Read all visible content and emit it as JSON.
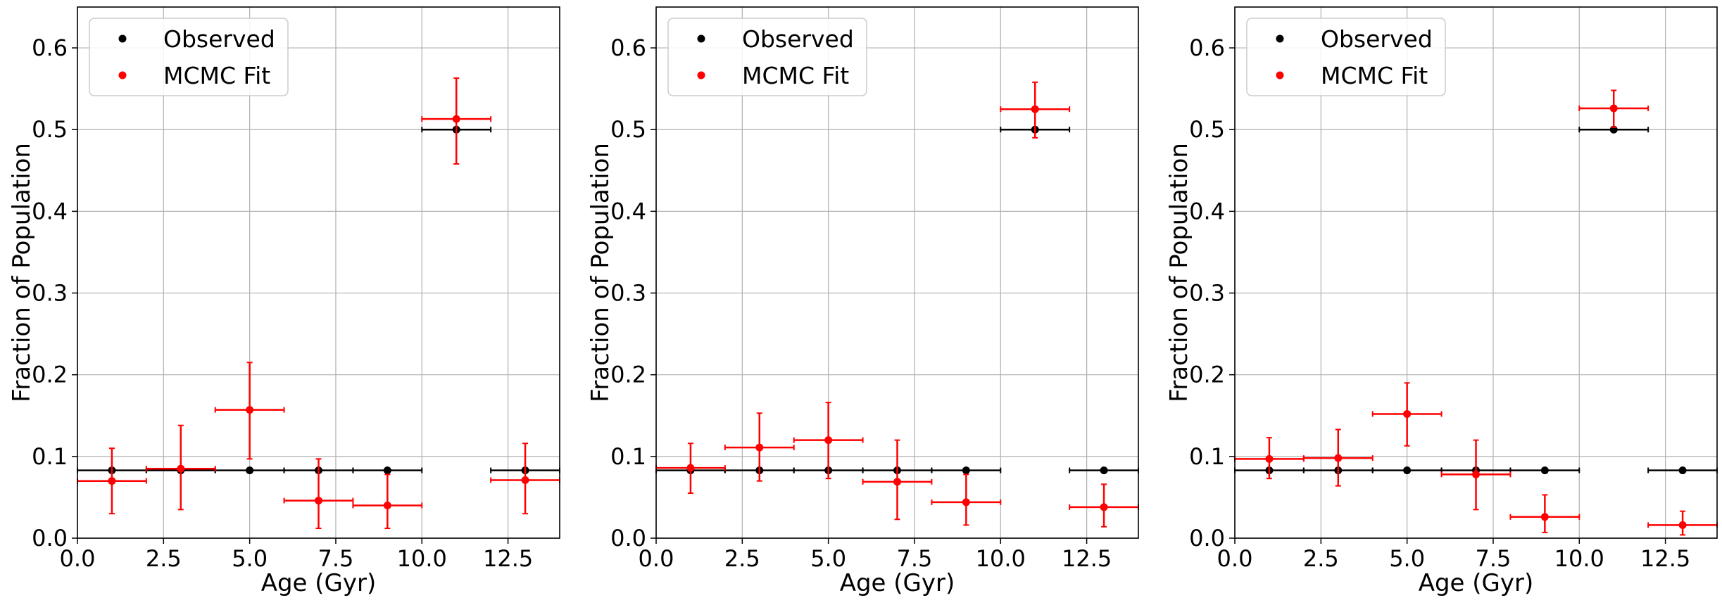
{
  "chart_data": [
    {
      "type": "scatter",
      "xlabel": "Age (Gyr)",
      "ylabel": "Fraction of Population",
      "xlim": [
        0,
        14
      ],
      "ylim": [
        0,
        0.65
      ],
      "xticks": [
        "0.0",
        "2.5",
        "5.0",
        "7.5",
        "10.0",
        "12.5"
      ],
      "yticks": [
        "0.0",
        "0.1",
        "0.2",
        "0.3",
        "0.4",
        "0.5",
        "0.6"
      ],
      "grid": true,
      "legend_position": "top-left",
      "series": [
        {
          "name": "Observed",
          "color": "#000000",
          "points": [
            {
              "x": 1,
              "y": 0.083,
              "xerr": 1
            },
            {
              "x": 3,
              "y": 0.083,
              "xerr": 1
            },
            {
              "x": 5,
              "y": 0.083,
              "xerr": 1
            },
            {
              "x": 7,
              "y": 0.083,
              "xerr": 1
            },
            {
              "x": 9,
              "y": 0.083,
              "xerr": 1
            },
            {
              "x": 11,
              "y": 0.5,
              "xerr": 1
            },
            {
              "x": 13,
              "y": 0.083,
              "xerr": 1
            }
          ]
        },
        {
          "name": "MCMC Fit",
          "color": "#ff0000",
          "points": [
            {
              "x": 1,
              "y": 0.07,
              "xerr": 1,
              "ylo": 0.03,
              "yhi": 0.11
            },
            {
              "x": 3,
              "y": 0.085,
              "xerr": 1,
              "ylo": 0.035,
              "yhi": 0.138
            },
            {
              "x": 5,
              "y": 0.157,
              "xerr": 1,
              "ylo": 0.097,
              "yhi": 0.215
            },
            {
              "x": 7,
              "y": 0.046,
              "xerr": 1,
              "ylo": 0.012,
              "yhi": 0.097
            },
            {
              "x": 9,
              "y": 0.04,
              "xerr": 1,
              "ylo": 0.012,
              "yhi": 0.078
            },
            {
              "x": 11,
              "y": 0.513,
              "xerr": 1,
              "ylo": 0.458,
              "yhi": 0.563
            },
            {
              "x": 13,
              "y": 0.071,
              "xerr": 1,
              "ylo": 0.03,
              "yhi": 0.116
            }
          ]
        }
      ]
    },
    {
      "type": "scatter",
      "xlabel": "Age (Gyr)",
      "ylabel": "Fraction of Population",
      "xlim": [
        0,
        14
      ],
      "ylim": [
        0,
        0.65
      ],
      "xticks": [
        "0.0",
        "2.5",
        "5.0",
        "7.5",
        "10.0",
        "12.5"
      ],
      "yticks": [
        "0.0",
        "0.1",
        "0.2",
        "0.3",
        "0.4",
        "0.5",
        "0.6"
      ],
      "grid": true,
      "legend_position": "top-left",
      "series": [
        {
          "name": "Observed",
          "color": "#000000",
          "points": [
            {
              "x": 1,
              "y": 0.083,
              "xerr": 1
            },
            {
              "x": 3,
              "y": 0.083,
              "xerr": 1
            },
            {
              "x": 5,
              "y": 0.083,
              "xerr": 1
            },
            {
              "x": 7,
              "y": 0.083,
              "xerr": 1
            },
            {
              "x": 9,
              "y": 0.083,
              "xerr": 1
            },
            {
              "x": 11,
              "y": 0.5,
              "xerr": 1
            },
            {
              "x": 13,
              "y": 0.083,
              "xerr": 1
            }
          ]
        },
        {
          "name": "MCMC Fit",
          "color": "#ff0000",
          "points": [
            {
              "x": 1,
              "y": 0.086,
              "xerr": 1,
              "ylo": 0.055,
              "yhi": 0.116
            },
            {
              "x": 3,
              "y": 0.111,
              "xerr": 1,
              "ylo": 0.07,
              "yhi": 0.153
            },
            {
              "x": 5,
              "y": 0.12,
              "xerr": 1,
              "ylo": 0.073,
              "yhi": 0.166
            },
            {
              "x": 7,
              "y": 0.069,
              "xerr": 1,
              "ylo": 0.023,
              "yhi": 0.12
            },
            {
              "x": 9,
              "y": 0.044,
              "xerr": 1,
              "ylo": 0.016,
              "yhi": 0.078
            },
            {
              "x": 11,
              "y": 0.525,
              "xerr": 1,
              "ylo": 0.49,
              "yhi": 0.558
            },
            {
              "x": 13,
              "y": 0.038,
              "xerr": 1,
              "ylo": 0.014,
              "yhi": 0.066
            }
          ]
        }
      ]
    },
    {
      "type": "scatter",
      "xlabel": "Age (Gyr)",
      "ylabel": "Fraction of Population",
      "xlim": [
        0,
        14
      ],
      "ylim": [
        0,
        0.65
      ],
      "xticks": [
        "0.0",
        "2.5",
        "5.0",
        "7.5",
        "10.0",
        "12.5"
      ],
      "yticks": [
        "0.0",
        "0.1",
        "0.2",
        "0.3",
        "0.4",
        "0.5",
        "0.6"
      ],
      "grid": true,
      "legend_position": "top-left",
      "series": [
        {
          "name": "Observed",
          "color": "#000000",
          "points": [
            {
              "x": 1,
              "y": 0.083,
              "xerr": 1
            },
            {
              "x": 3,
              "y": 0.083,
              "xerr": 1
            },
            {
              "x": 5,
              "y": 0.083,
              "xerr": 1
            },
            {
              "x": 7,
              "y": 0.083,
              "xerr": 1
            },
            {
              "x": 9,
              "y": 0.083,
              "xerr": 1
            },
            {
              "x": 11,
              "y": 0.5,
              "xerr": 1
            },
            {
              "x": 13,
              "y": 0.083,
              "xerr": 1
            }
          ]
        },
        {
          "name": "MCMC Fit",
          "color": "#ff0000",
          "points": [
            {
              "x": 1,
              "y": 0.097,
              "xerr": 1,
              "ylo": 0.073,
              "yhi": 0.123
            },
            {
              "x": 3,
              "y": 0.098,
              "xerr": 1,
              "ylo": 0.064,
              "yhi": 0.133
            },
            {
              "x": 5,
              "y": 0.152,
              "xerr": 1,
              "ylo": 0.113,
              "yhi": 0.19
            },
            {
              "x": 7,
              "y": 0.078,
              "xerr": 1,
              "ylo": 0.035,
              "yhi": 0.12
            },
            {
              "x": 9,
              "y": 0.026,
              "xerr": 1,
              "ylo": 0.007,
              "yhi": 0.053
            },
            {
              "x": 11,
              "y": 0.526,
              "xerr": 1,
              "ylo": 0.503,
              "yhi": 0.548
            },
            {
              "x": 13,
              "y": 0.016,
              "xerr": 1,
              "ylo": 0.004,
              "yhi": 0.033
            }
          ]
        }
      ]
    }
  ]
}
